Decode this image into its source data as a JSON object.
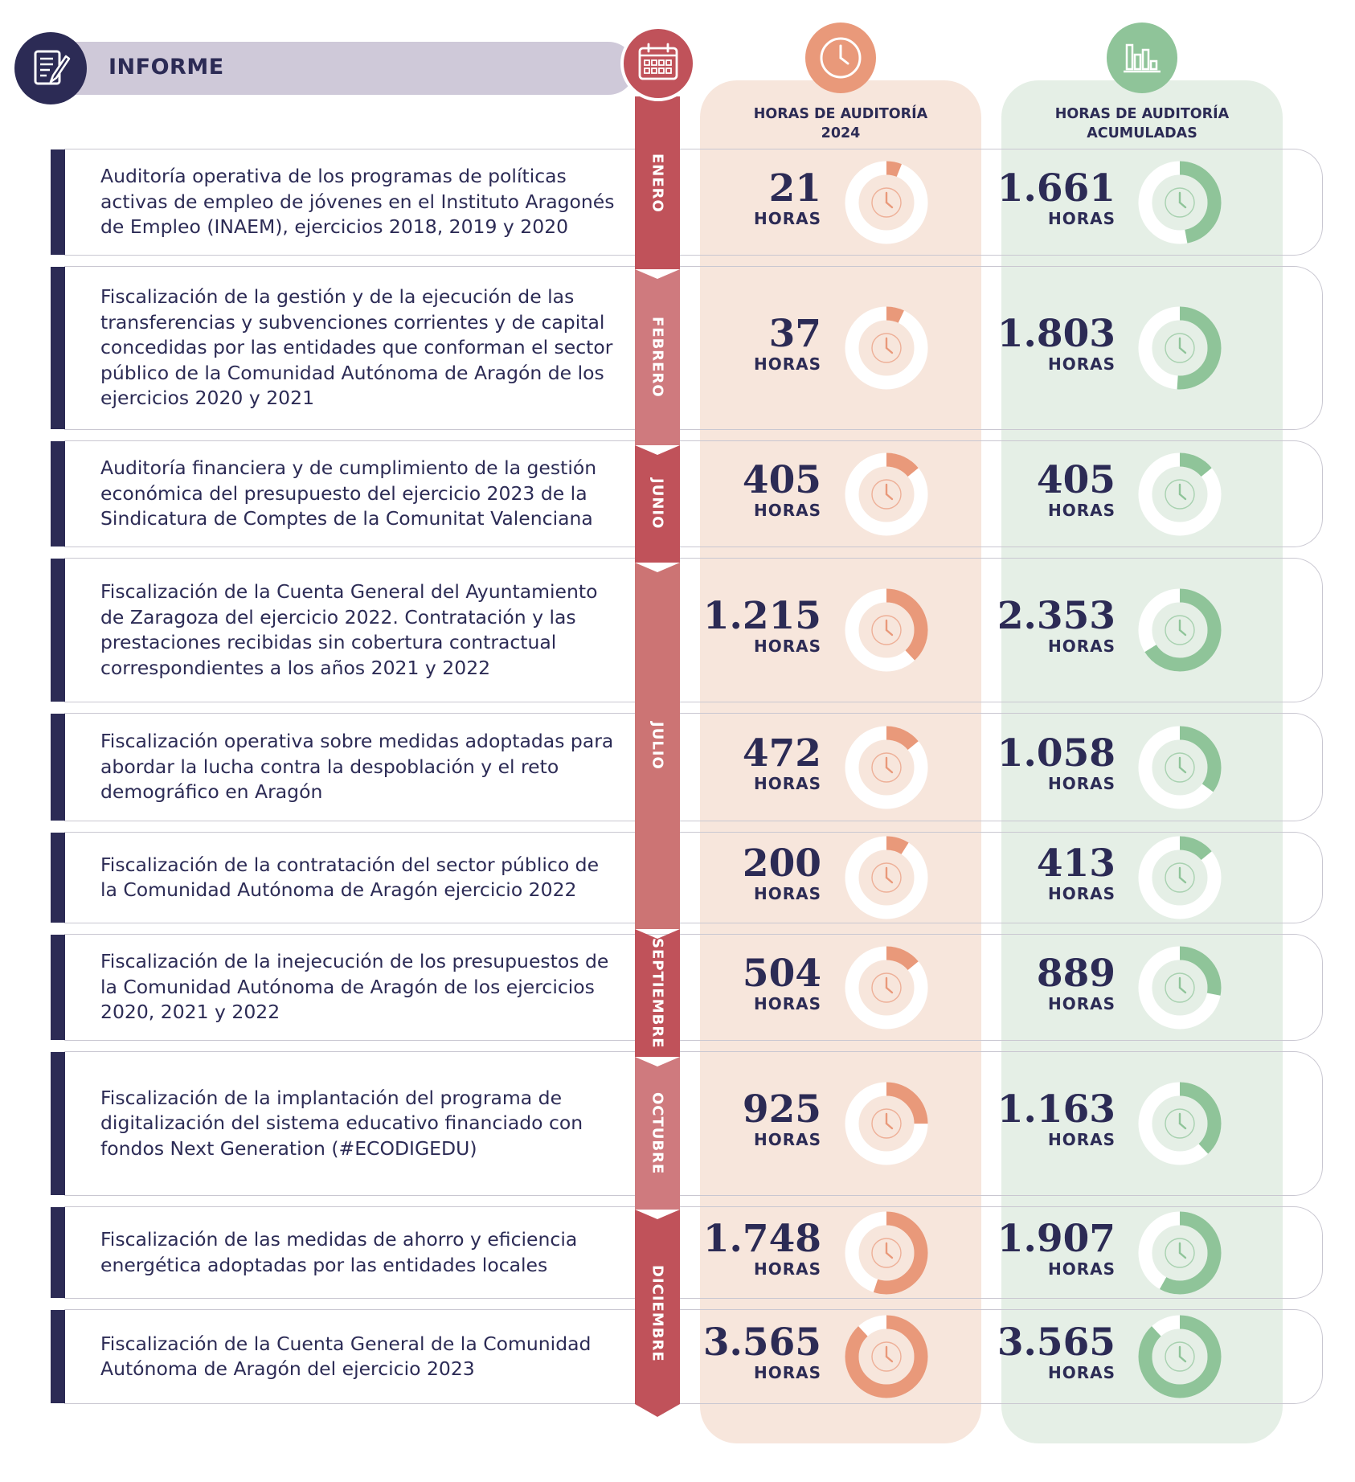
{
  "header": {
    "title": "INFORME",
    "icon": "document-pencil-icon",
    "timeline_icon": "calendar-icon"
  },
  "columns": {
    "hours_2024": {
      "title_line1": "HORAS DE AUDITORÍA",
      "title_line2": "2024",
      "icon": "clock-icon",
      "color": "#e9997a"
    },
    "hours_accumulated": {
      "title_line1": "HORAS DE AUDITORÍA",
      "title_line2": "ACUMULADAS",
      "icon": "bar-chart-icon",
      "color": "#8fc499"
    }
  },
  "unit_label": "HORAS",
  "months": [
    {
      "label": "ENERO",
      "color": "#c0525a"
    },
    {
      "label": "FEBRERO",
      "color": "#cf7a7e"
    },
    {
      "label": "JUNIO",
      "color": "#c0525a"
    },
    {
      "label": "JULIO",
      "color": "#cc7474"
    },
    {
      "label": "SEPTIEMBRE",
      "color": "#c0525a"
    },
    {
      "label": "OCTUBRE",
      "color": "#cf7a7e"
    },
    {
      "label": "DICIEMBRE",
      "color": "#c0525a"
    }
  ],
  "reports": [
    {
      "text": "Auditoría operativa de los programas de políticas activas de empleo de jóvenes en el Instituto Aragonés de Empleo (INAEM), ejercicios 2018, 2019 y 2020",
      "hours_2024": "21",
      "hours_accumulated": "1.661",
      "fill_2024": 0.06,
      "fill_accumulated": 0.47
    },
    {
      "text": "Fiscalización de la gestión y de la ejecución de las transferencias y subvenciones corrientes y de capital concedidas por las entidades que conforman el sector público de la Comunidad Autónoma de Aragón de los ejercicios 2020 y 2021",
      "hours_2024": "37",
      "hours_accumulated": "1.803",
      "fill_2024": 0.07,
      "fill_accumulated": 0.51
    },
    {
      "text": "Auditoría financiera y de cumplimiento de la gestión económica del presupuesto del ejercicio 2023 de la Sindicatura de Comptes de la Comunitat Valenciana",
      "hours_2024": "405",
      "hours_accumulated": "405",
      "fill_2024": 0.14,
      "fill_accumulated": 0.14
    },
    {
      "text": "Fiscalización de la Cuenta General del Ayuntamiento de Zaragoza del ejercicio 2022. Contratación y las prestaciones recibidas sin cobertura contractual correspondientes a los años 2021 y 2022",
      "hours_2024": "1.215",
      "hours_accumulated": "2.353",
      "fill_2024": 0.38,
      "fill_accumulated": 0.66
    },
    {
      "text": "Fiscalización operativa sobre medidas adoptadas para abordar la lucha contra la despoblación y el reto demográfico en Aragón",
      "hours_2024": "472",
      "hours_accumulated": "1.058",
      "fill_2024": 0.14,
      "fill_accumulated": 0.35
    },
    {
      "text": "Fiscalización de la contratación del sector público de la Comunidad Autónoma de Aragón ejercicio 2022",
      "hours_2024": "200",
      "hours_accumulated": "413",
      "fill_2024": 0.09,
      "fill_accumulated": 0.14
    },
    {
      "text": "Fiscalización de la inejecución de los presupuestos de la Comunidad Autónoma de Aragón de los ejercicios 2020, 2021 y 2022",
      "hours_2024": "504",
      "hours_accumulated": "889",
      "fill_2024": 0.14,
      "fill_accumulated": 0.28
    },
    {
      "text": "Fiscalización de la implantación del programa de digitalización del sistema educativo financiado con fondos Next Generation (#ECODIGEDU)",
      "hours_2024": "925",
      "hours_accumulated": "1.163",
      "fill_2024": 0.25,
      "fill_accumulated": 0.38
    },
    {
      "text": "Fiscalización de las medidas de ahorro y eficiencia energética adoptadas por las entidades locales",
      "hours_2024": "1.748",
      "hours_accumulated": "1.907",
      "fill_2024": 0.55,
      "fill_accumulated": 0.58
    },
    {
      "text": "Fiscalización de la Cuenta General de la Comunidad Autónoma de Aragón del ejercicio 2023",
      "hours_2024": "3.565",
      "hours_accumulated": "3.565",
      "fill_2024": 0.88,
      "fill_accumulated": 0.88
    }
  ]
}
